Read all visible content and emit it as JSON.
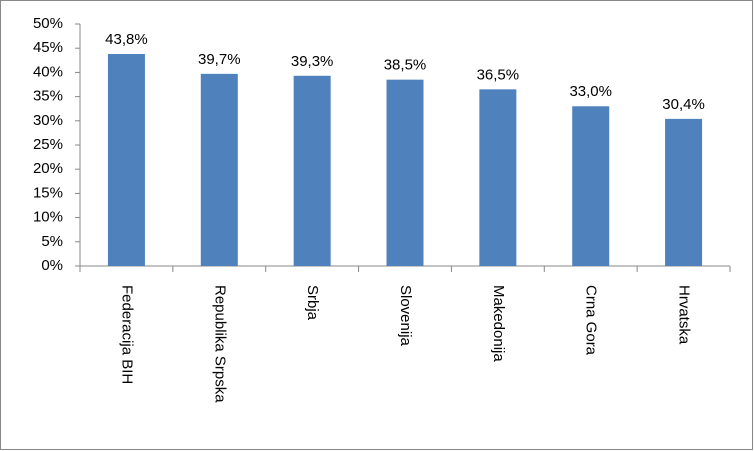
{
  "chart_data": {
    "type": "bar",
    "categories": [
      "Federacija BIH",
      "Republika Srpska",
      "Srbja",
      "Slovenija",
      "Makedonija",
      "Crna Gora",
      "Hrvatska"
    ],
    "values": [
      43.8,
      39.7,
      39.3,
      38.5,
      36.5,
      33.0,
      30.4
    ],
    "value_labels": [
      "43,8%",
      "39,7%",
      "39,3%",
      "38,5%",
      "36,5%",
      "33,0%",
      "30,4%"
    ],
    "color": "#4f81bd",
    "ylim": [
      0,
      50
    ],
    "yticks": [
      {
        "value": 0,
        "label": "0%"
      },
      {
        "value": 5,
        "label": "5%"
      },
      {
        "value": 10,
        "label": "10%"
      },
      {
        "value": 15,
        "label": "15%"
      },
      {
        "value": 20,
        "label": "20%"
      },
      {
        "value": 25,
        "label": "25%"
      },
      {
        "value": 30,
        "label": "30%"
      },
      {
        "value": 35,
        "label": "35%"
      },
      {
        "value": 40,
        "label": "40%"
      },
      {
        "value": 45,
        "label": "45%"
      },
      {
        "value": 50,
        "label": "50%"
      }
    ],
    "grid": false
  }
}
